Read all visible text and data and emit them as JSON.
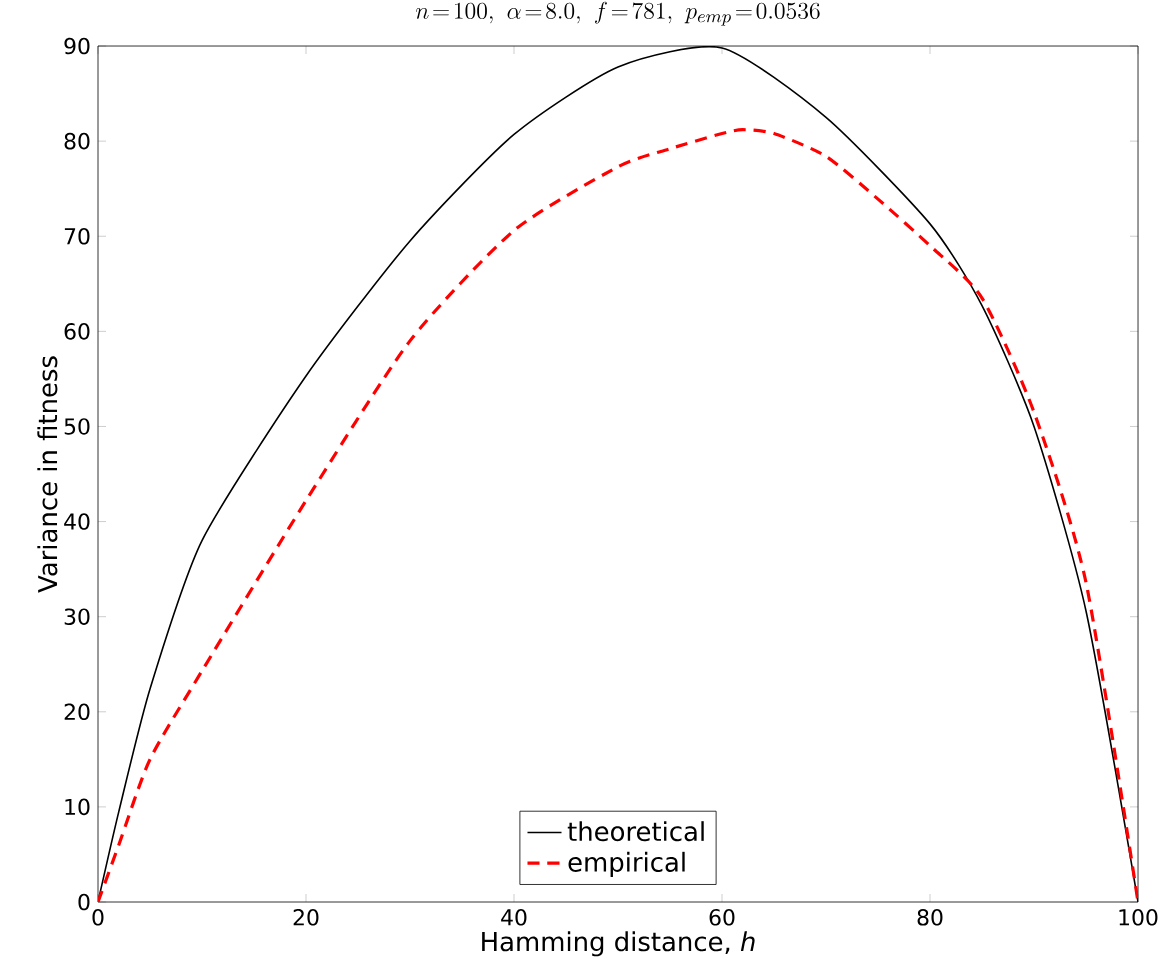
{
  "chart_data": {
    "type": "line",
    "title": "n\\!=\\!100,\\ \\alpha\\!=\\!8.0,\\ f\\!=\\!781,\\ p_{emp}\\!=\\!0.0536",
    "xlabel": "Hamming distance, *h*",
    "ylabel": "Variance in fitness",
    "xlim": [
      0,
      100
    ],
    "ylim": [
      0,
      90
    ],
    "xticks": [
      0,
      20,
      40,
      60,
      80,
      100
    ],
    "yticks": [
      0,
      10,
      20,
      30,
      40,
      50,
      60,
      70,
      80,
      90
    ],
    "grid": false,
    "legend": "bottom",
    "marker": "none",
    "series": [
      {
        "name": "theoretical",
        "color": "#000000",
        "line_style": "solid",
        "x": [
          0,
          2,
          5,
          10,
          20,
          30,
          40,
          50,
          60,
          70,
          80,
          85,
          90,
          95,
          100
        ],
        "values": [
          0,
          9.5,
          22.4,
          38,
          55.3,
          69.5,
          80.7,
          87.8,
          89.8,
          82.5,
          71.3,
          62.7,
          50,
          30.6,
          0
        ]
      },
      {
        "name": "empirical",
        "color": "#ff0000",
        "line_style": "dashed",
        "x": [
          0,
          2,
          5,
          10,
          20,
          30,
          40,
          50,
          55,
          60,
          62,
          65,
          70,
          75,
          80,
          85,
          90,
          95,
          100
        ],
        "values": [
          0,
          6,
          15,
          24.3,
          42.2,
          59,
          70.6,
          77.3,
          79.2,
          80.8,
          81.2,
          80.8,
          78.4,
          73.9,
          69,
          63.5,
          51.5,
          33.6,
          0
        ]
      }
    ]
  }
}
